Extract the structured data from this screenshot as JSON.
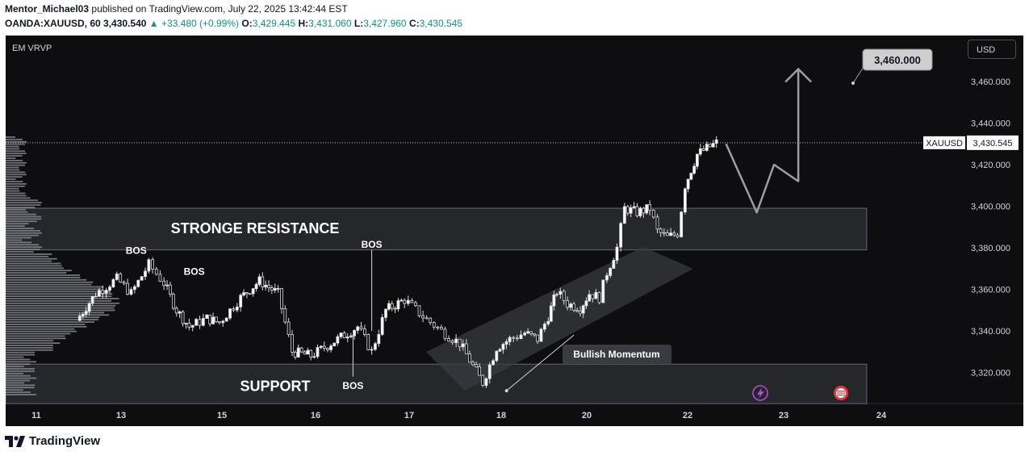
{
  "header": {
    "author": "Mentor_Michael03",
    "published_text": "published on TradingView.com, July 22, 2025 13:42:44 EST",
    "symbol": "OANDA:XAUUSD, 60",
    "last": "3,430.540",
    "change": "▲ +33.480 (+0.99%)",
    "o_label": "O:",
    "o_value": "3,429.445",
    "h_label": "H:",
    "h_value": "3,431.060",
    "l_label": "L:",
    "l_value": "3,427.960",
    "c_label": "C:",
    "c_value": "3,430.545"
  },
  "toolbar": {
    "indicator": "EM VRVP",
    "currency": "USD"
  },
  "footer": {
    "brand": "TradingView"
  },
  "colors": {
    "background": "#0e0e10",
    "candle": "#d9d9d9",
    "zone_fill": "#2a2b30",
    "zone_border": "#5a5c66",
    "arrow": "#9e9e9e",
    "axis_text": "#d1d4dc",
    "up": "#089981",
    "event_icon": "#b04bd6",
    "flag_icon": "#e0393e"
  },
  "chart_data": {
    "type": "candlestick",
    "symbol": "OANDA:XAUUSD",
    "timeframe": "60",
    "x_ticks": [
      {
        "label": "11",
        "day": 11
      },
      {
        "label": "13",
        "day": 13
      },
      {
        "label": "15",
        "day": 15
      },
      {
        "label": "16",
        "day": 16
      },
      {
        "label": "17",
        "day": 17
      },
      {
        "label": "18",
        "day": 18
      },
      {
        "label": "20",
        "day": 20
      },
      {
        "label": "22",
        "day": 22
      },
      {
        "label": "23",
        "day": 23
      },
      {
        "label": "24",
        "day": 24
      }
    ],
    "y_ticks": [
      3320,
      3340,
      3360,
      3380,
      3400,
      3420,
      3440,
      3460
    ],
    "y_tick_labels": [
      "3,320.000",
      "3,340.000",
      "3,360.000",
      "3,380.000",
      "3,400.000",
      "3,420.000",
      "3,440.000",
      "3,460.000"
    ],
    "ylim": [
      3305,
      3482
    ],
    "current_price": 3430.545,
    "current_price_label": "3,430.545",
    "current_symbol_label": "XAUUSD",
    "candle_path": [
      [
        11.95,
        3345
      ],
      [
        12.4,
        3358
      ],
      [
        12.9,
        3365
      ],
      [
        13.2,
        3358
      ],
      [
        13.55,
        3372
      ],
      [
        13.85,
        3363
      ],
      [
        14.1,
        3350
      ],
      [
        14.35,
        3342
      ],
      [
        14.7,
        3346
      ],
      [
        14.95,
        3344
      ],
      [
        15.2,
        3356
      ],
      [
        15.4,
        3364
      ],
      [
        15.6,
        3358
      ],
      [
        15.75,
        3330
      ],
      [
        15.95,
        3328
      ],
      [
        16.2,
        3335
      ],
      [
        16.45,
        3342
      ],
      [
        16.6,
        3330
      ],
      [
        16.75,
        3350
      ],
      [
        16.95,
        3355
      ],
      [
        17.15,
        3347
      ],
      [
        17.35,
        3340
      ],
      [
        17.55,
        3334
      ],
      [
        17.8,
        3315
      ],
      [
        17.95,
        3332
      ],
      [
        18.2,
        3336
      ],
      [
        18.55,
        3339
      ],
      [
        18.85,
        3336
      ],
      [
        19.1,
        3347
      ],
      [
        19.3,
        3359
      ],
      [
        19.55,
        3353
      ],
      [
        19.85,
        3351
      ],
      [
        20.05,
        3358
      ],
      [
        20.25,
        3356
      ],
      [
        20.4,
        3368
      ],
      [
        20.6,
        3380
      ],
      [
        20.75,
        3399
      ],
      [
        21.0,
        3397
      ],
      [
        21.25,
        3399
      ],
      [
        21.4,
        3388
      ],
      [
        21.6,
        3385
      ],
      [
        21.8,
        3387
      ],
      [
        21.95,
        3410
      ],
      [
        22.1,
        3425
      ],
      [
        22.3,
        3430.5
      ]
    ],
    "zones": [
      {
        "name": "STRONGE RESISTANCE",
        "from": 3379,
        "to": 3399,
        "x_start": 11,
        "x_end": 23.85
      },
      {
        "name": "SUPPORT",
        "from": 3305,
        "to": 3324,
        "x_start": 11,
        "x_end": 23.85
      }
    ],
    "channel": {
      "x_start": 18.05,
      "x_end": 21.05,
      "low_start": 3312,
      "low_end": 3363,
      "high_start": 3331,
      "high_end": 3378
    },
    "bos_labels": [
      {
        "text": "BOS",
        "day": 13.3,
        "price": 3377
      },
      {
        "text": "BOS",
        "day": 14.45,
        "price": 3367
      },
      {
        "text": "BOS",
        "day": 16.6,
        "price": 3380
      },
      {
        "text": "BOS",
        "day": 16.4,
        "price": 3312
      }
    ],
    "projection_path": [
      [
        22.4,
        3430
      ],
      [
        22.72,
        3397
      ],
      [
        22.9,
        3420
      ],
      [
        23.15,
        3412
      ],
      [
        23.15,
        3466
      ]
    ],
    "target_label": "3,460.000",
    "target_price": 3460,
    "annotation": {
      "text": "Bullish Momentum",
      "from_day": 18.05,
      "from_price": 3312,
      "to_day": 19.7,
      "to_price": 3338
    }
  }
}
